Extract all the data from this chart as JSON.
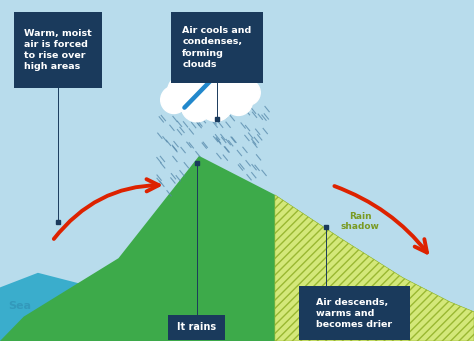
{
  "bg_sky_color": "#b8dcec",
  "bg_sea_color": "#3aadcc",
  "mountain_color": "#3daa4a",
  "rain_shadow_fill": "#d4e87a",
  "rain_shadow_hatch_color": "#9ab832",
  "cloud_color": "#ffffff",
  "rain_color": "#5588aa",
  "label_box_color": "#1a3a5c",
  "label_text_color": "#ffffff",
  "sea_label_color": "#3399bb",
  "rain_shadow_label_color": "#7a9a22",
  "arrow_red_color": "#dd2200",
  "arrow_blue_color": "#2288cc",
  "line_color": "#1a3a5c",
  "labels": {
    "warm_moist": "Warm, moist\nair is forced\nto rise over\nhigh areas",
    "air_cools": "Air cools and\ncondenses,\nforming\nclouds",
    "it_rains": "It rains",
    "air_descends": "Air descends,\nwarms and\nbecomes drier",
    "sea": "Sea",
    "rain_shadow": "Rain\nshadow"
  },
  "mountain_pts_x": [
    0.0,
    0.5,
    1.5,
    2.5,
    4.2,
    5.8,
    7.2,
    8.5,
    9.5,
    10.0,
    10.0,
    0.0
  ],
  "mountain_pts_y": [
    0.0,
    0.5,
    1.1,
    1.7,
    3.8,
    3.0,
    2.1,
    1.3,
    0.8,
    0.6,
    0.0,
    0.0
  ],
  "sea_pts_x": [
    0.0,
    0.0,
    0.8,
    2.0,
    2.5,
    2.5,
    0.0
  ],
  "sea_pts_y": [
    0.0,
    1.1,
    1.4,
    1.1,
    0.7,
    0.0,
    0.0
  ],
  "shadow_pts_x": [
    5.8,
    7.2,
    8.5,
    9.5,
    10.0,
    10.0,
    5.8
  ],
  "shadow_pts_y": [
    3.0,
    2.1,
    1.3,
    0.8,
    0.6,
    0.0,
    0.0
  ]
}
